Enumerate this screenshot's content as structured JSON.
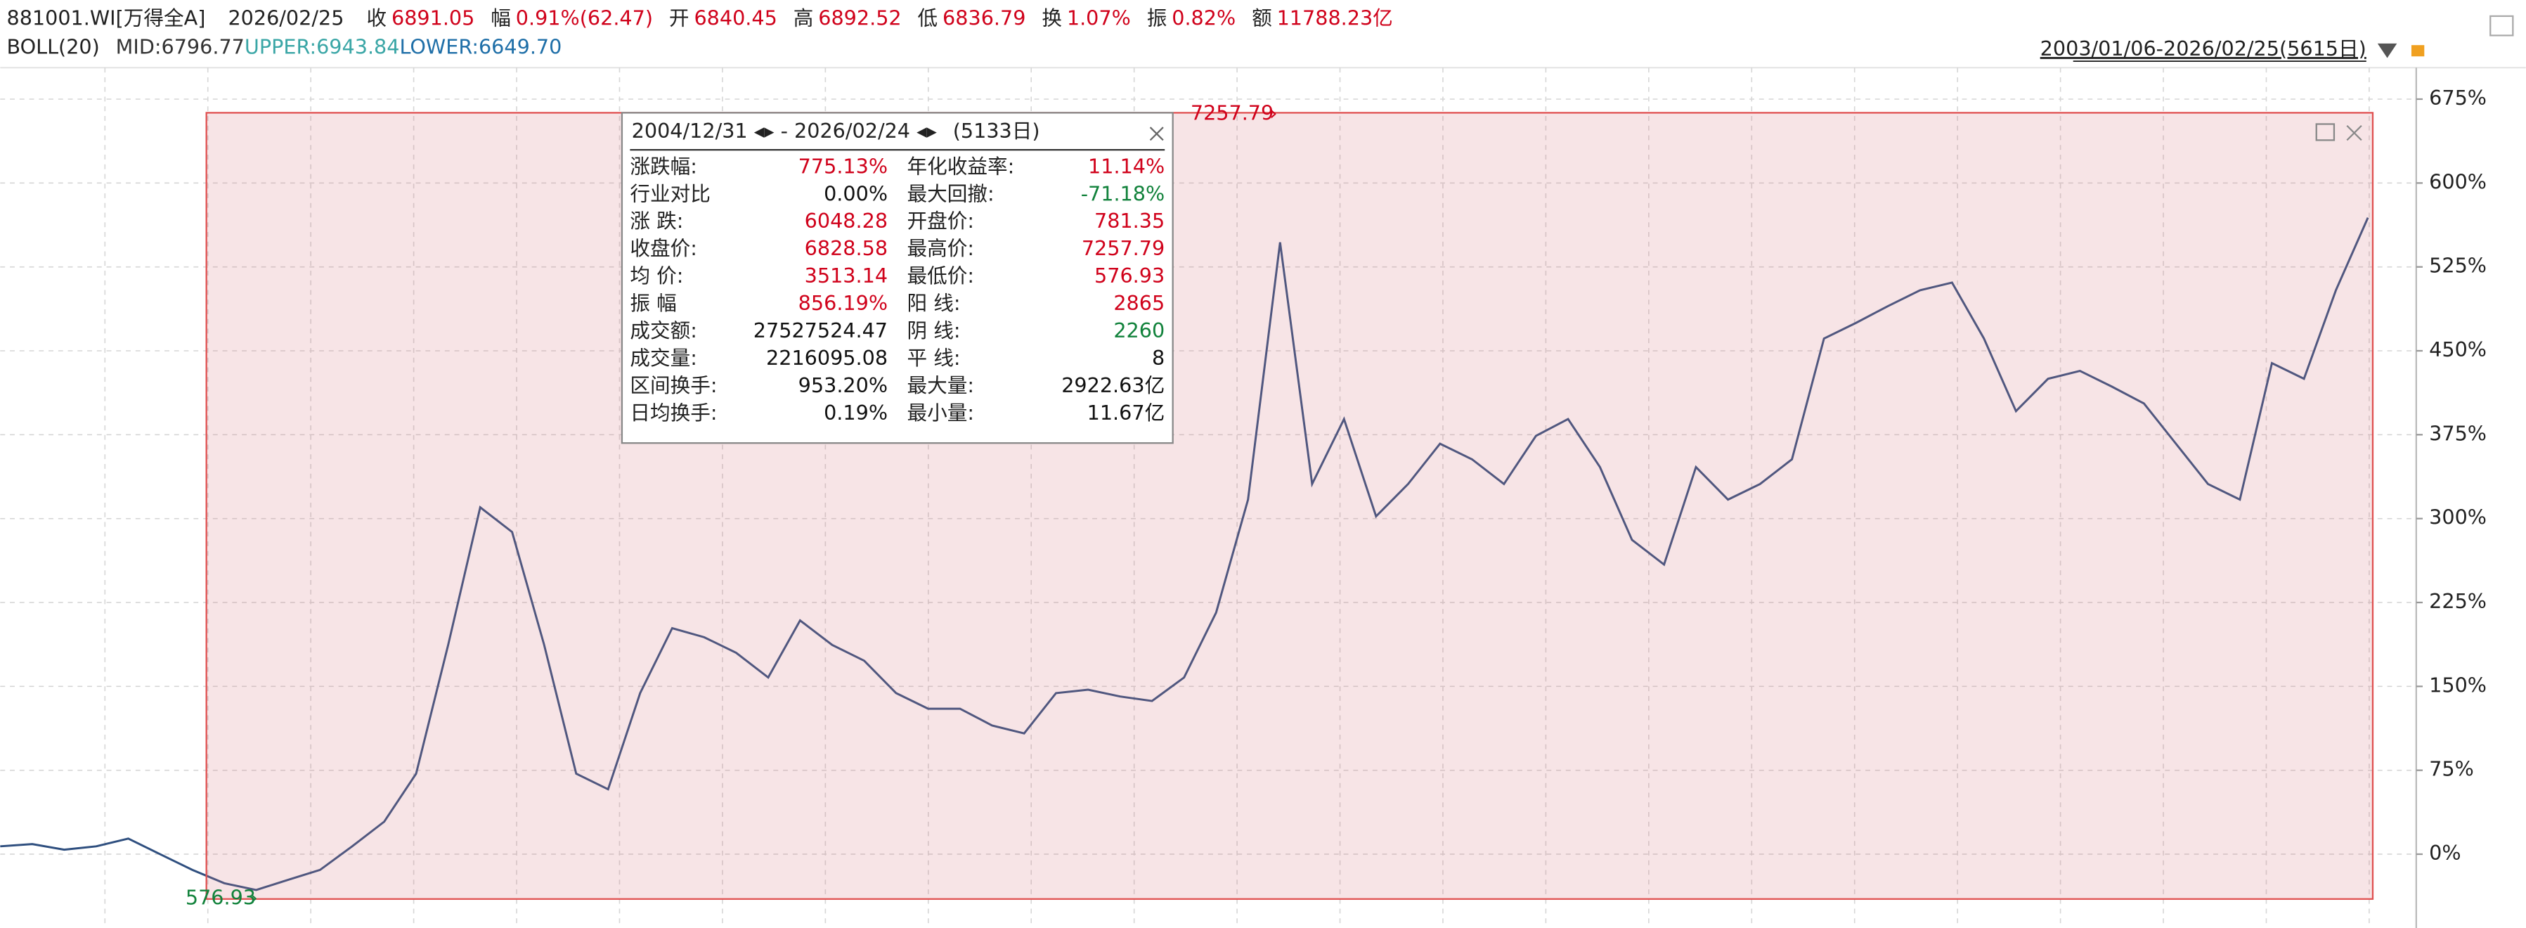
{
  "header": {
    "code": "881001.WI[万得全A]",
    "date": "2026/02/25",
    "items": [
      {
        "label": "收",
        "value": "6891.05"
      },
      {
        "label": "幅",
        "value": "0.91%(62.47)"
      },
      {
        "label": "开",
        "value": "6840.45"
      },
      {
        "label": "高",
        "value": "6892.52"
      },
      {
        "label": "低",
        "value": "6836.79"
      },
      {
        "label": "换",
        "value": "1.07%"
      },
      {
        "label": "振",
        "value": "0.82%"
      },
      {
        "label": "额",
        "value": "11788.23亿"
      }
    ],
    "indicator": "BOLL(20)",
    "mid": "MID:6796.77",
    "upper": "UPPER:6943.84",
    "lower": "LOWER:6649.70",
    "range": "2003/01/06-2026/02/25(5615日)"
  },
  "chart_data": {
    "type": "line",
    "color": "#2f4f7f",
    "values": [
      7,
      9,
      4,
      7,
      14,
      0,
      -14,
      -26,
      -32,
      -23,
      -14,
      7,
      29,
      72,
      187,
      310,
      288,
      187,
      72,
      58,
      144,
      202,
      194,
      180,
      158,
      209,
      187,
      173,
      144,
      130,
      130,
      115,
      108,
      144,
      147,
      141,
      137,
      158,
      216,
      317,
      547,
      331,
      389,
      302,
      331,
      367,
      353,
      331,
      374,
      389,
      346,
      281,
      259,
      346,
      317,
      331,
      353,
      461,
      475,
      490,
      504,
      511,
      461,
      396,
      425,
      432,
      418,
      403,
      367,
      331,
      317,
      439,
      425,
      504,
      569
    ],
    "ylim": [
      -66,
      706
    ],
    "yticks": [
      {
        "value": 0,
        "label": "0%"
      },
      {
        "value": 75,
        "label": "75%"
      },
      {
        "value": 150,
        "label": "150%"
      },
      {
        "value": 225,
        "label": "225%"
      },
      {
        "value": 300,
        "label": "300%"
      },
      {
        "value": 375,
        "label": "375%"
      },
      {
        "value": 450,
        "label": "450%"
      },
      {
        "value": 525,
        "label": "525%"
      },
      {
        "value": 600,
        "label": "600%"
      },
      {
        "value": 675,
        "label": "675%"
      }
    ],
    "grid": true,
    "max_label": "7257.79",
    "min_label": "576.93"
  },
  "info_box": {
    "date_start": "2004/12/31",
    "date_end": "2026/02/24",
    "days": "(5133日)",
    "rows": [
      [
        {
          "label": "涨跌幅:",
          "value": "775.13%",
          "color": "red"
        },
        {
          "label": "年化收益率:",
          "value": "11.14%",
          "color": "red"
        }
      ],
      [
        {
          "label": "行业对比",
          "value": "0.00%",
          "color": "black"
        },
        {
          "label": "最大回撤:",
          "value": "-71.18%",
          "color": "green"
        }
      ],
      [
        {
          "label": "涨  跌:",
          "value": "6048.28",
          "color": "red"
        },
        {
          "label": "开盘价:",
          "value": "781.35",
          "color": "red"
        }
      ],
      [
        {
          "label": "收盘价:",
          "value": "6828.58",
          "color": "red"
        },
        {
          "label": "最高价:",
          "value": "7257.79",
          "color": "red"
        }
      ],
      [
        {
          "label": "均  价:",
          "value": "3513.14",
          "color": "red"
        },
        {
          "label": "最低价:",
          "value": "576.93",
          "color": "red"
        }
      ],
      [
        {
          "label": "振  幅",
          "value": "856.19%",
          "color": "red"
        },
        {
          "label": "阳  线:",
          "value": "2865",
          "color": "red"
        }
      ],
      [
        {
          "label": "成交额:",
          "value": "27527524.47",
          "color": "black"
        },
        {
          "label": "阴  线:",
          "value": "2260",
          "color": "green"
        }
      ],
      [
        {
          "label": "成交量:",
          "value": "2216095.08",
          "color": "black"
        },
        {
          "label": "平  线:",
          "value": "8",
          "color": "black"
        }
      ],
      [
        {
          "label": "区间换手:",
          "value": "953.20%",
          "color": "black"
        },
        {
          "label": "最大量:",
          "value": "2922.63亿",
          "color": "black"
        }
      ],
      [
        {
          "label": "日均换手:",
          "value": "0.19%",
          "color": "black"
        },
        {
          "label": "最小量:",
          "value": "11.67亿",
          "color": "black"
        }
      ]
    ]
  }
}
